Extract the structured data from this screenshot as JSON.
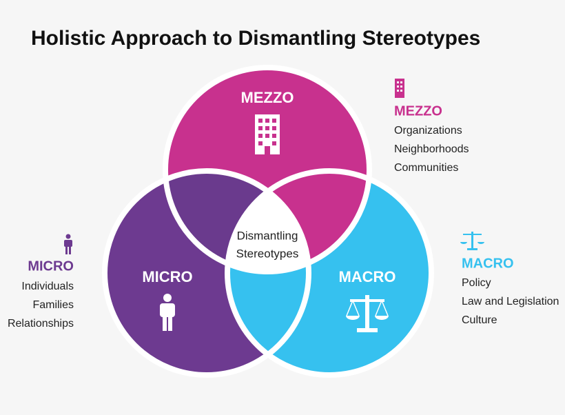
{
  "title": "Holistic Approach to Dismantling Stereotypes",
  "circles": [
    {
      "label": "MEZZO"
    },
    {
      "label": "MICRO"
    },
    {
      "label": "MACRO"
    }
  ],
  "center": {
    "lines": [
      "Dismantling",
      "Stereotypes"
    ]
  },
  "legends": [
    {
      "title": "MEZZO",
      "items": [
        "Organizations",
        "Neighborhoods",
        "Communities"
      ]
    },
    {
      "title": "MICRO",
      "items": [
        "Individuals",
        "Families",
        "Relationships"
      ]
    },
    {
      "title": "MACRO",
      "items": [
        "Policy",
        "Law and Legislation",
        "Culture"
      ]
    }
  ]
}
